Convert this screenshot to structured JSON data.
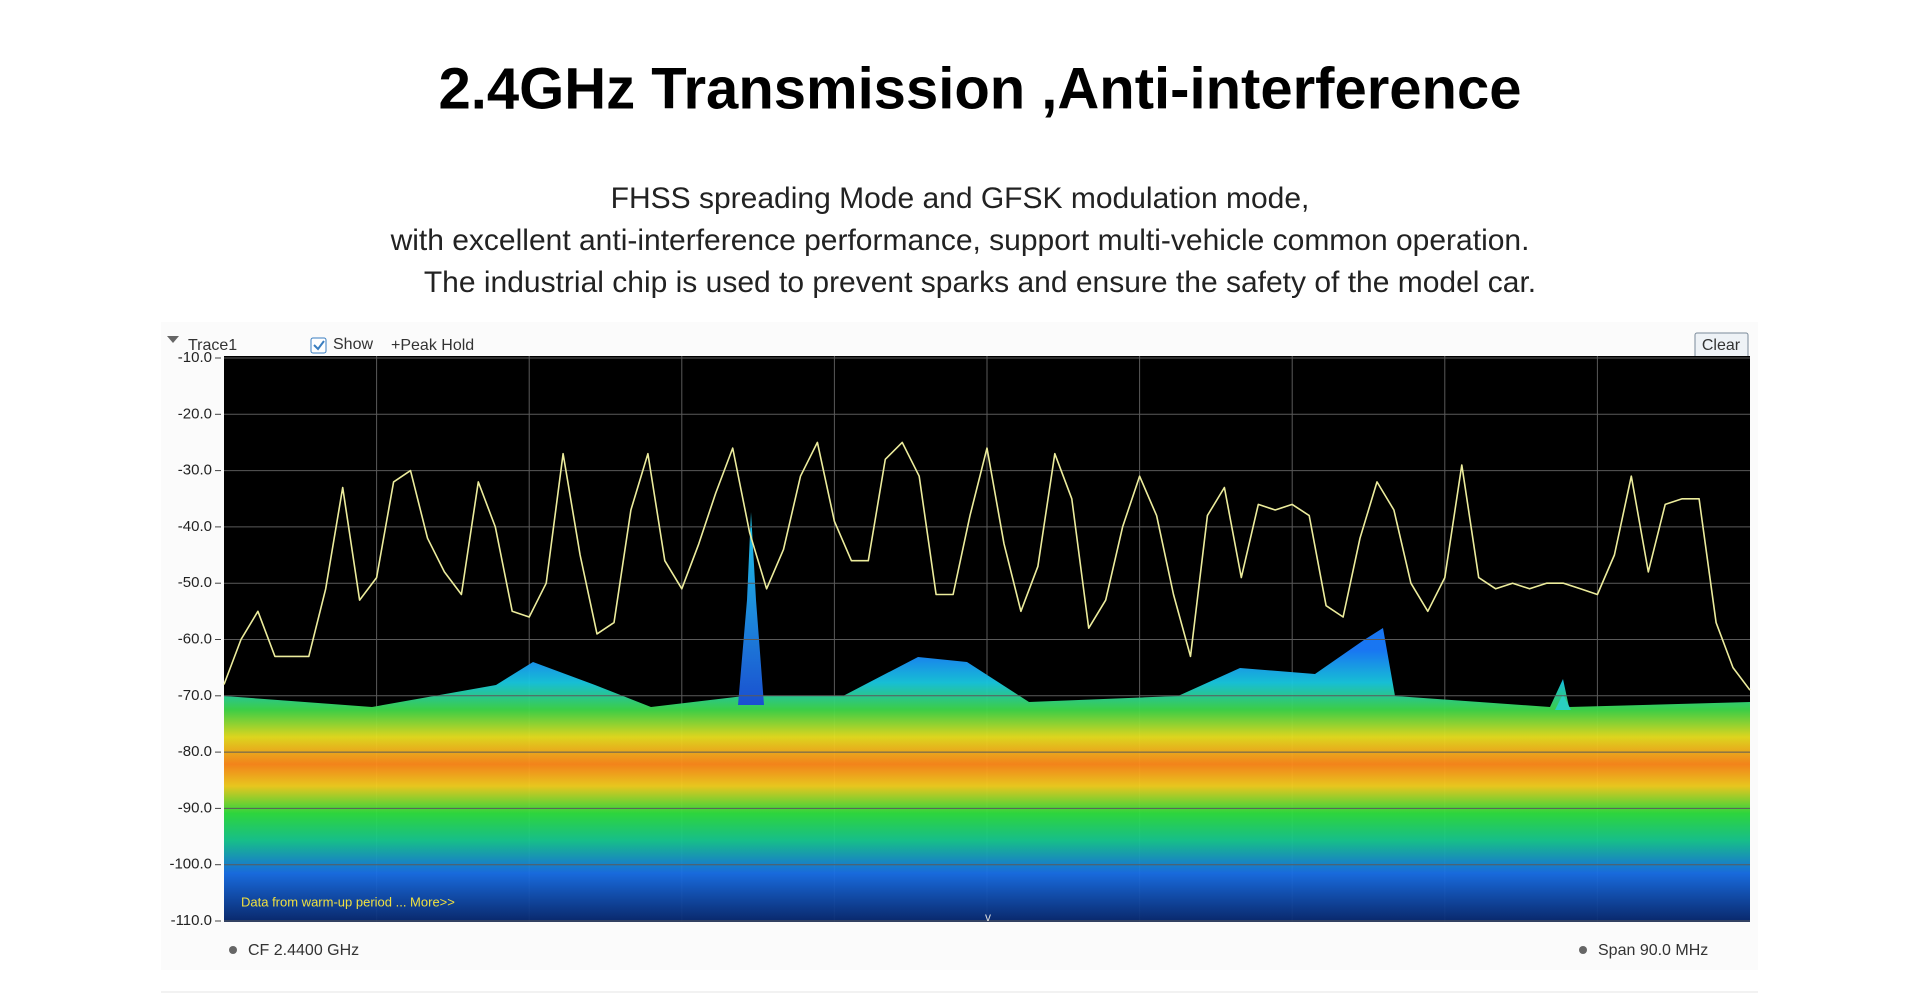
{
  "header": {
    "title": "2.4GHz Transmission ,Anti-interference",
    "description": [
      "FHSS spreading Mode and GFSK modulation mode,",
      "with excellent anti-interference performance, support multi-vehicle common operation.",
      "The industrial chip is used to prevent sparks and ensure the safety of the model car."
    ]
  },
  "ui": {
    "show": "Show",
    "peak_hold": "+Peak Hold",
    "clear": "Clear",
    "warmup_note": "Data from warm-up period ... More>>",
    "center_frequency": "CF 2.4400 GHz",
    "span": "Span 90.0 MHz",
    "marker": "v"
  },
  "chart_data": {
    "type": "line",
    "x": [
      2395,
      2396,
      2397,
      2398,
      2399,
      2400,
      2401,
      2402,
      2403,
      2404,
      2405,
      2406,
      2407,
      2408,
      2409,
      2410,
      2411,
      2412,
      2413,
      2414,
      2415,
      2416,
      2417,
      2418,
      2419,
      2420,
      2421,
      2422,
      2423,
      2424,
      2425,
      2426,
      2427,
      2428,
      2429,
      2430,
      2431,
      2432,
      2433,
      2434,
      2435,
      2436,
      2437,
      2438,
      2439,
      2440,
      2441,
      2442,
      2443,
      2444,
      2445,
      2446,
      2447,
      2448,
      2449,
      2450,
      2451,
      2452,
      2453,
      2454,
      2455,
      2456,
      2457,
      2458,
      2459,
      2460,
      2461,
      2462,
      2463,
      2464,
      2465,
      2466,
      2467,
      2468,
      2469,
      2470,
      2471,
      2472,
      2473,
      2474,
      2475,
      2476,
      2477,
      2478,
      2479,
      2480,
      2481,
      2482,
      2483,
      2484,
      2485
    ],
    "xlim": [
      2395,
      2485
    ],
    "series": [
      {
        "name": "Trace1",
        "color": "#ecec9c",
        "values": [
          -68,
          -60,
          -55,
          -63,
          -63,
          -63,
          -51,
          -33,
          -53,
          -49,
          -32,
          -30,
          -42,
          -48,
          -52,
          -32,
          -40,
          -55,
          -56,
          -50,
          -27,
          -45,
          -59,
          -57,
          -37,
          -27,
          -46,
          -51,
          -43,
          -34,
          -26,
          -41,
          -51,
          -44,
          -31,
          -25,
          -39,
          -46,
          -46,
          -28,
          -25,
          -31,
          -52,
          -52,
          -38,
          -26,
          -43,
          -55,
          -47,
          -27,
          -35,
          -58,
          -53,
          -40,
          -31,
          -38,
          -52,
          -63,
          -38,
          -33,
          -49,
          -36,
          -37,
          -36,
          -38,
          -54,
          -56,
          -42,
          -32,
          -37,
          -50,
          -55,
          -49,
          -29,
          -49,
          -51,
          -50,
          -51,
          -50,
          -50,
          -51,
          -52,
          -45,
          -31,
          -48,
          -36,
          -35,
          -35,
          -57,
          -65,
          -69
        ]
      }
    ],
    "ylim": [
      -110,
      -10
    ],
    "yticks": [
      {
        "value": -10,
        "label": "-10.0"
      },
      {
        "value": -20,
        "label": "-20.0"
      },
      {
        "value": -30,
        "label": "-30.0"
      },
      {
        "value": -40,
        "label": "-40.0"
      },
      {
        "value": -50,
        "label": "-50.0"
      },
      {
        "value": -60,
        "label": "-60.0"
      },
      {
        "value": -70,
        "label": "-70.0"
      },
      {
        "value": -80,
        "label": "-80.0"
      },
      {
        "value": -90,
        "label": "-90.0"
      },
      {
        "value": -100,
        "label": "-100.0"
      },
      {
        "value": -110,
        "label": "-110.0"
      }
    ],
    "grid": true
  }
}
